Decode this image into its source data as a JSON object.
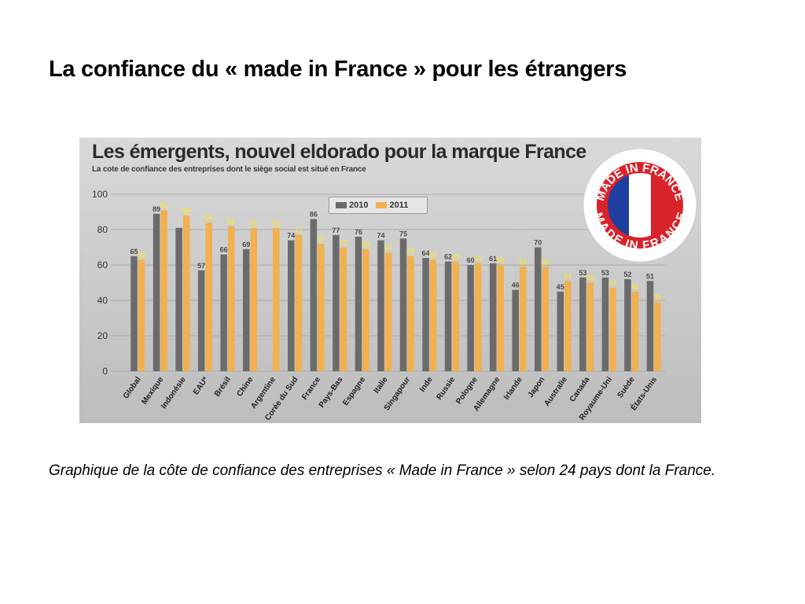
{
  "slide": {
    "title": "La confiance du « made in France » pour les étrangers",
    "caption": "Graphique de la côte de confiance des entreprises « Made in France » selon 24 pays dont la France."
  },
  "badge": {
    "top_text": "MADE IN FRANCE",
    "bottom_text": "MADE IN FRANCE",
    "colors": {
      "blue": "#1e3fa0",
      "white": "#ffffff",
      "red": "#d8232a"
    }
  },
  "chart_data": {
    "type": "bar",
    "title": "Les émergents, nouvel eldorado pour la marque France",
    "subtitle": "La cote de confiance des entreprises dont le siège social est situé en France",
    "ylim": [
      0,
      100
    ],
    "yticks": [
      0,
      20,
      40,
      60,
      80,
      100
    ],
    "grid": true,
    "legend_position": "top",
    "highlight_category": "France",
    "categories": [
      "Global",
      "Mexique",
      "Indonésie",
      "EAU*",
      "Brésil",
      "Chine",
      "Argentine",
      "Corée du Sud",
      "France",
      "Pays-Bas",
      "Espagne",
      "Italie",
      "Singapour",
      "Inde",
      "Russie",
      "Pologne",
      "Allemagne",
      "Irlande",
      "Japon",
      "Australie",
      "Canada",
      "Royaume-Uni",
      "Suède",
      "États-Unis"
    ],
    "series": [
      {
        "name": "2010",
        "color": "#6b6b6b",
        "values": [
          65,
          89,
          81,
          57,
          66,
          69,
          null,
          74,
          86,
          77,
          76,
          74,
          75,
          64,
          62,
          60,
          61,
          46,
          70,
          45,
          53,
          53,
          52,
          51
        ],
        "labels": [
          "65",
          "89",
          "",
          "57",
          "66",
          "69",
          "",
          "74",
          "86",
          "77",
          "76",
          "74",
          "75",
          "64",
          "62",
          "60",
          "61",
          "46",
          "70",
          "45",
          "53",
          "53",
          "52",
          "51"
        ]
      },
      {
        "name": "2011",
        "color": "#f2b04e",
        "values": [
          63,
          91,
          88,
          84,
          82,
          81,
          81,
          77,
          72,
          70,
          69,
          67,
          65,
          63,
          62,
          61,
          60,
          59,
          59,
          51,
          50,
          47,
          45,
          39
        ],
        "labels": [
          "63",
          "91",
          "88",
          "84",
          "82",
          "81",
          "81",
          "77",
          "72",
          "70",
          "69",
          "67",
          "65",
          "63",
          "62",
          "61",
          "60",
          "59",
          "59",
          "51",
          "50",
          "47",
          "45",
          "39"
        ]
      }
    ]
  }
}
